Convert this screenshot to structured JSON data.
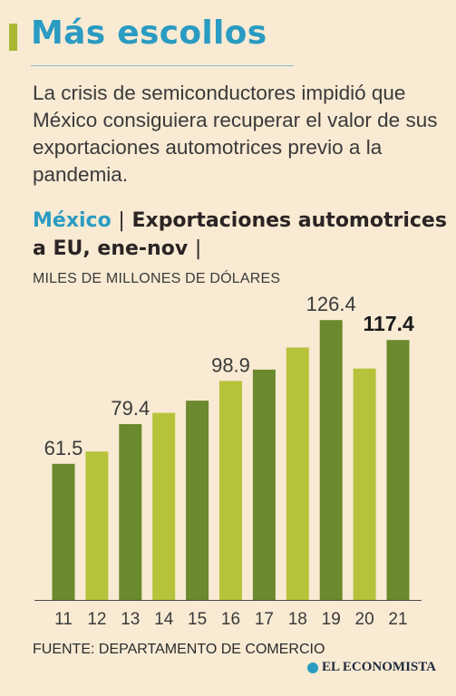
{
  "header": {
    "title": "Más escollos",
    "description": "La crisis de semiconductores impidió que México consiguiera recuperar el valor de sus exportaciones automotrices previo a la pandemia."
  },
  "chart_header": {
    "country": "México",
    "separator": "|",
    "title": "Exportaciones automotrices a EU, ene-nov",
    "units": "MILES DE MILLONES DE DÓLARES"
  },
  "chart_data": {
    "type": "bar",
    "title": "Exportaciones automotrices a EU, ene-nov",
    "ylabel": "MILES DE MILLONES DE DÓLARES",
    "categories": [
      "11",
      "12",
      "13",
      "14",
      "15",
      "16",
      "17",
      "18",
      "19",
      "20",
      "21"
    ],
    "values": [
      61.5,
      67.0,
      79.4,
      84.5,
      90.0,
      98.9,
      104.0,
      114.0,
      126.4,
      104.5,
      117.4
    ],
    "labeled_points": [
      {
        "category": "11",
        "label": "61.5"
      },
      {
        "category": "13",
        "label": "79.4"
      },
      {
        "category": "16",
        "label": "98.9"
      },
      {
        "category": "19",
        "label": "126.4"
      },
      {
        "category": "21",
        "label": "117.4",
        "emphasis": true
      }
    ],
    "ylim": [
      0,
      140
    ],
    "grid": false,
    "colors": {
      "dark": "#6a8a2d",
      "light": "#b6c23a",
      "axis": "#4a4a4a"
    }
  },
  "footer": {
    "source": "FUENTE: DEPARTAMENTO DE COMERCIO",
    "logo": "EL ECONOMISTA"
  }
}
